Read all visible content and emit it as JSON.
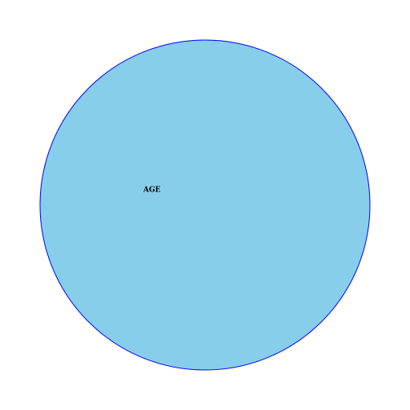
{
  "diagram": {
    "circle": {
      "label": "AGE",
      "fill_color": "#87CEEB",
      "stroke_color": "#0000FF"
    }
  }
}
